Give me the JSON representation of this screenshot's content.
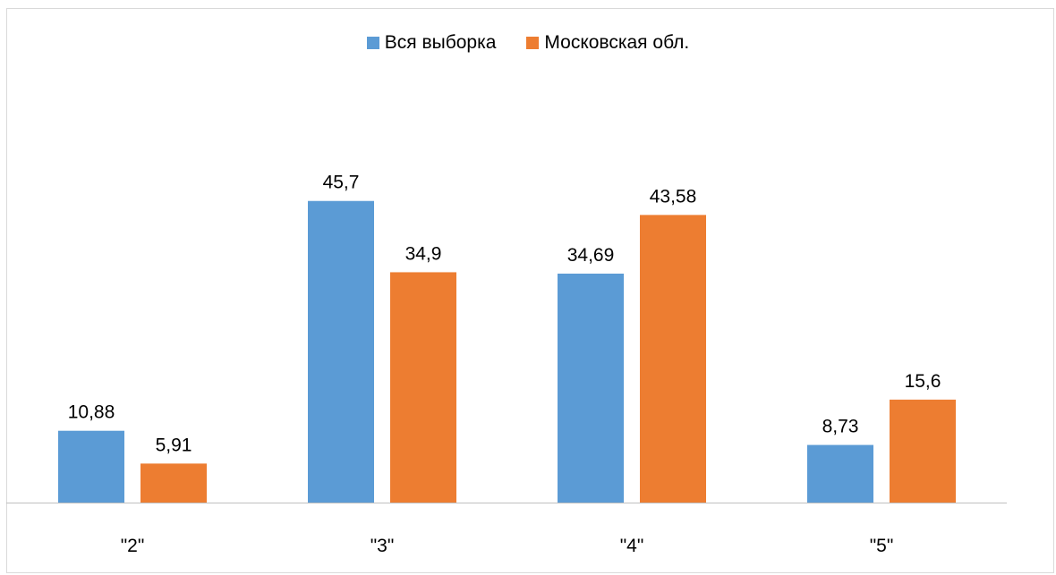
{
  "chart_data": {
    "type": "bar",
    "categories": [
      "\"2\"",
      "\"3\"",
      "\"4\"",
      "\"5\""
    ],
    "series": [
      {
        "name": "Вся выборка",
        "color": "#5b9bd5",
        "values": [
          10.88,
          45.7,
          34.69,
          8.73
        ],
        "labels": [
          "10,88",
          "45,7",
          "34,69",
          "8,73"
        ]
      },
      {
        "name": "Московская обл.",
        "color": "#ed7d31",
        "values": [
          5.91,
          34.9,
          43.58,
          15.6
        ],
        "labels": [
          "5,91",
          "34,9",
          "43,58",
          "15,6"
        ]
      }
    ],
    "title": "",
    "xlabel": "",
    "ylabel": "",
    "ylim": [
      0,
      50
    ],
    "grid": false,
    "legend_position": "top",
    "data_labels": true
  }
}
